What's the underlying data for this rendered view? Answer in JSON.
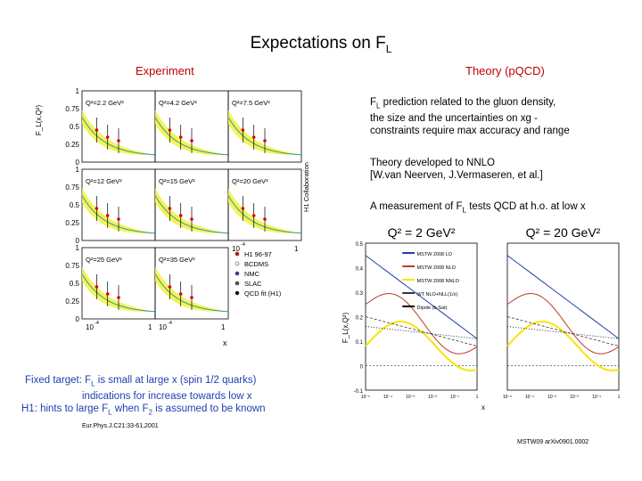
{
  "title": {
    "main": "Expectations on F",
    "sub": "L"
  },
  "left_heading": "Experiment",
  "right_heading": "Theory (pQCD)",
  "theory": {
    "para1": {
      "l1a": "F",
      "l1sub": "L",
      "l1b": " prediction related to the gluon density,",
      "l2": "the size and the uncertainties on xg -",
      "l3": "constraints require max accuracy and range"
    },
    "para2": {
      "l1": "Theory developed to NNLO",
      "l2": "[W.van Neerven, J.Vermaseren, et al.]"
    },
    "para3": {
      "a": "A measurement of F",
      "sub": "L",
      "b": " tests QCD at h.o. at low x"
    }
  },
  "bottom": {
    "l1a": "Fixed target: F",
    "l1sub": "L",
    "l1b": " is small at large x (spin 1/2 quarks)",
    "l2": "indications for increase towards low x",
    "l3a": "H1: hints to large F",
    "l3sub": "L",
    "l3b": " when F",
    "l3sub2": "2",
    "l3c": " is assumed to be known",
    "ref": "Eur.Phys.J.C21:33-61,2001"
  },
  "footer_ref": "MSTW09 arXiv0901.0002",
  "h1_grid": {
    "y_axis_label": "F_L(x,Q²)",
    "side_label": "H1 Collaboration",
    "x_axis_label": "x",
    "y_ticks": [
      "1",
      "0.75",
      "0.5",
      "0.25",
      "0"
    ],
    "x_ticks": [
      "10",
      "-4",
      "1"
    ],
    "panels": [
      "Q²=2.2 GeV²",
      "Q²=4.2 GeV²",
      "Q²=7.5 GeV²",
      "Q²=12 GeV²",
      "Q²=15 GeV²",
      "Q²=20 GeV²",
      "Q²=25 GeV²",
      "Q²=35 GeV²"
    ],
    "legend": [
      "H1 96-97",
      "BCDMS",
      "NMC",
      "SLAC",
      "QCD fit (H1)"
    ]
  },
  "mstw_plot": {
    "panel1_title": "Q² = 2 GeV²",
    "panel2_title": "Q² = 20 GeV²",
    "y_axis_label": "F_L(x,Q²)",
    "x_axis_label": "x",
    "y_ticks": [
      "0.5",
      "0.4",
      "0.3",
      "0.2",
      "0.1",
      "0",
      "-0.1"
    ],
    "x_ticks": [
      "10⁻⁵",
      "10⁻⁴",
      "10⁻³",
      "10⁻²",
      "10⁻¹",
      "1"
    ],
    "legend": [
      "MSTW 2008 LO",
      "MSTW 2008 NLO",
      "MSTW 2008 NNLO",
      "WT NLO+NLL(1/x)",
      "Dipole (b-Sat)"
    ],
    "colors": {
      "lo": "#1f3fae",
      "nlo": "#c0392b",
      "nnlo": "#f5e600",
      "wt": "#333333",
      "dipole": "#000000"
    }
  }
}
